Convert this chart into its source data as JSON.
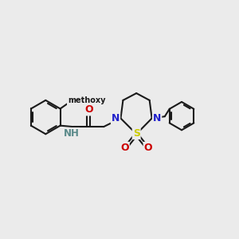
{
  "bg_color": "#ebebeb",
  "bond_color": "#1a1a1a",
  "bond_width": 1.5,
  "atom_colors": {
    "N": "#2020cc",
    "O": "#cc0000",
    "S": "#cccc00",
    "C": "#1a1a1a",
    "H": "#5a8a8a"
  },
  "figsize": [
    3.0,
    3.0
  ],
  "dpi": 100,
  "xlim": [
    0,
    10
  ],
  "ylim": [
    0,
    10
  ]
}
